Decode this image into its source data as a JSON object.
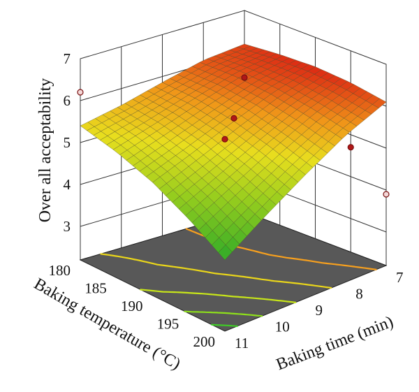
{
  "chart_data": {
    "type": "surface3d",
    "zlabel": "Over all acceptability",
    "xlabel": "Baking temperature (°C)",
    "ylabel": "Baking time (min)",
    "z_ticks": [
      "3",
      "4",
      "5",
      "6",
      "7"
    ],
    "x_ticks": [
      "180",
      "185",
      "190",
      "195",
      "200"
    ],
    "y_ticks": [
      "7",
      "8",
      "9",
      "10",
      "11"
    ],
    "zlim": [
      2.2,
      7
    ],
    "xlim": [
      180,
      200
    ],
    "ylim": [
      7,
      11
    ],
    "grid": true,
    "surface_z": [
      [
        6.2,
        6.27,
        6.3,
        6.24,
        6.1
      ],
      [
        6.1,
        6.12,
        6.05,
        5.9,
        5.7
      ],
      [
        5.86,
        5.82,
        5.68,
        5.45,
        5.15
      ],
      [
        5.6,
        5.5,
        5.28,
        4.95,
        4.55
      ],
      [
        5.4,
        5.2,
        4.9,
        4.45,
        3.9
      ]
    ],
    "points": [
      {
        "x": 180,
        "y": 11,
        "z": 6.2,
        "above": false
      },
      {
        "x": 180,
        "y": 7,
        "z": 5.4,
        "above": true
      },
      {
        "x": 200,
        "y": 11,
        "z": 6.78,
        "above": true
      },
      {
        "x": 190,
        "y": 9,
        "z": 5.75,
        "above": true
      },
      {
        "x": 200,
        "y": 7,
        "z": 3.9,
        "above": false
      },
      {
        "x": 195,
        "y": 7,
        "z": 4.7,
        "above": true
      }
    ],
    "contours": [
      {
        "level": 6.0,
        "color": "#f7a01e"
      },
      {
        "level": 5.5,
        "color": "#ead61a"
      },
      {
        "level": 5.0,
        "color": "#c8e619"
      },
      {
        "level": 4.5,
        "color": "#8ee01a"
      },
      {
        "level": 4.1,
        "color": "#3fcf25"
      }
    ],
    "floor_color": "#585858"
  }
}
